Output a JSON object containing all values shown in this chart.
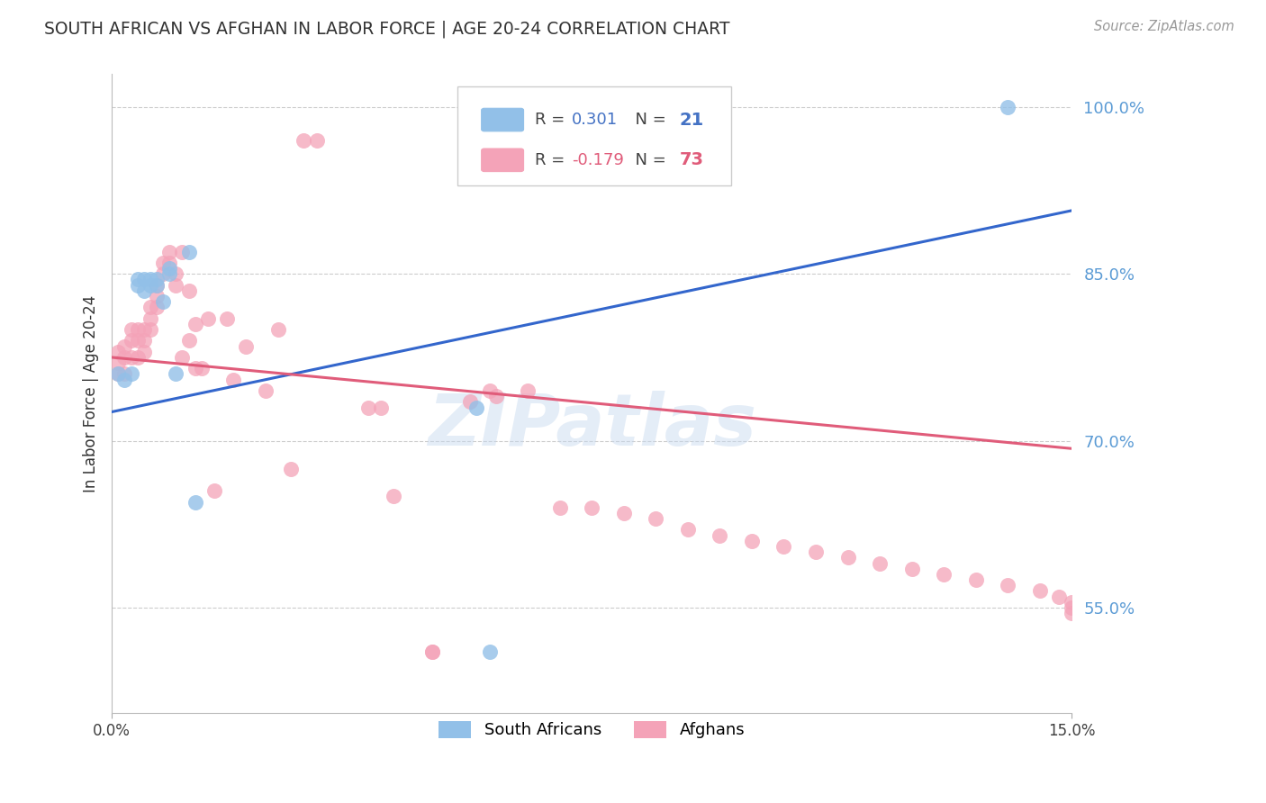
{
  "title": "SOUTH AFRICAN VS AFGHAN IN LABOR FORCE | AGE 20-24 CORRELATION CHART",
  "source": "Source: ZipAtlas.com",
  "ylabel": "In Labor Force | Age 20-24",
  "xmin": 0.0,
  "xmax": 0.15,
  "ymin": 0.455,
  "ymax": 1.03,
  "yticks": [
    0.55,
    0.7,
    0.85,
    1.0
  ],
  "ytick_labels": [
    "55.0%",
    "70.0%",
    "85.0%",
    "100.0%"
  ],
  "xtick_labels": [
    "0.0%",
    "15.0%"
  ],
  "blue_r": "0.301",
  "blue_n": "21",
  "pink_r": "-0.179",
  "pink_n": "73",
  "blue_color": "#92C0E8",
  "pink_color": "#F4A3B8",
  "line_blue_color": "#3366CC",
  "line_pink_color": "#E05C7A",
  "watermark": "ZIPatlas",
  "blue_line_x": [
    0.0,
    0.15
  ],
  "blue_line_y": [
    0.726,
    0.907
  ],
  "pink_line_x": [
    0.0,
    0.15
  ],
  "pink_line_y": [
    0.775,
    0.693
  ],
  "sa_x": [
    0.001,
    0.002,
    0.003,
    0.004,
    0.004,
    0.005,
    0.005,
    0.006,
    0.006,
    0.007,
    0.007,
    0.008,
    0.009,
    0.009,
    0.01,
    0.012,
    0.013,
    0.057,
    0.059,
    0.083,
    0.14
  ],
  "sa_y": [
    0.76,
    0.755,
    0.76,
    0.845,
    0.84,
    0.845,
    0.835,
    0.845,
    0.84,
    0.845,
    0.84,
    0.825,
    0.855,
    0.85,
    0.76,
    0.87,
    0.645,
    0.73,
    0.51,
    1.0,
    1.0
  ],
  "af_x": [
    0.001,
    0.001,
    0.001,
    0.002,
    0.002,
    0.002,
    0.003,
    0.003,
    0.003,
    0.004,
    0.004,
    0.004,
    0.005,
    0.005,
    0.005,
    0.006,
    0.006,
    0.006,
    0.007,
    0.007,
    0.007,
    0.008,
    0.008,
    0.009,
    0.009,
    0.01,
    0.01,
    0.011,
    0.011,
    0.012,
    0.012,
    0.013,
    0.013,
    0.014,
    0.015,
    0.016,
    0.018,
    0.019,
    0.021,
    0.024,
    0.026,
    0.028,
    0.03,
    0.032,
    0.04,
    0.042,
    0.044,
    0.05,
    0.05,
    0.056,
    0.059,
    0.06,
    0.065,
    0.07,
    0.075,
    0.08,
    0.085,
    0.09,
    0.095,
    0.1,
    0.105,
    0.11,
    0.115,
    0.12,
    0.125,
    0.13,
    0.135,
    0.14,
    0.145,
    0.148,
    0.15,
    0.15,
    0.15
  ],
  "af_y": [
    0.78,
    0.77,
    0.76,
    0.785,
    0.775,
    0.76,
    0.8,
    0.79,
    0.775,
    0.8,
    0.79,
    0.775,
    0.8,
    0.79,
    0.78,
    0.82,
    0.81,
    0.8,
    0.84,
    0.83,
    0.82,
    0.86,
    0.85,
    0.87,
    0.86,
    0.85,
    0.84,
    0.87,
    0.775,
    0.835,
    0.79,
    0.805,
    0.765,
    0.765,
    0.81,
    0.655,
    0.81,
    0.755,
    0.785,
    0.745,
    0.8,
    0.675,
    0.97,
    0.97,
    0.73,
    0.73,
    0.65,
    0.51,
    0.51,
    0.735,
    0.745,
    0.74,
    0.745,
    0.64,
    0.64,
    0.635,
    0.63,
    0.62,
    0.615,
    0.61,
    0.605,
    0.6,
    0.595,
    0.59,
    0.585,
    0.58,
    0.575,
    0.57,
    0.565,
    0.56,
    0.555,
    0.55,
    0.545
  ]
}
